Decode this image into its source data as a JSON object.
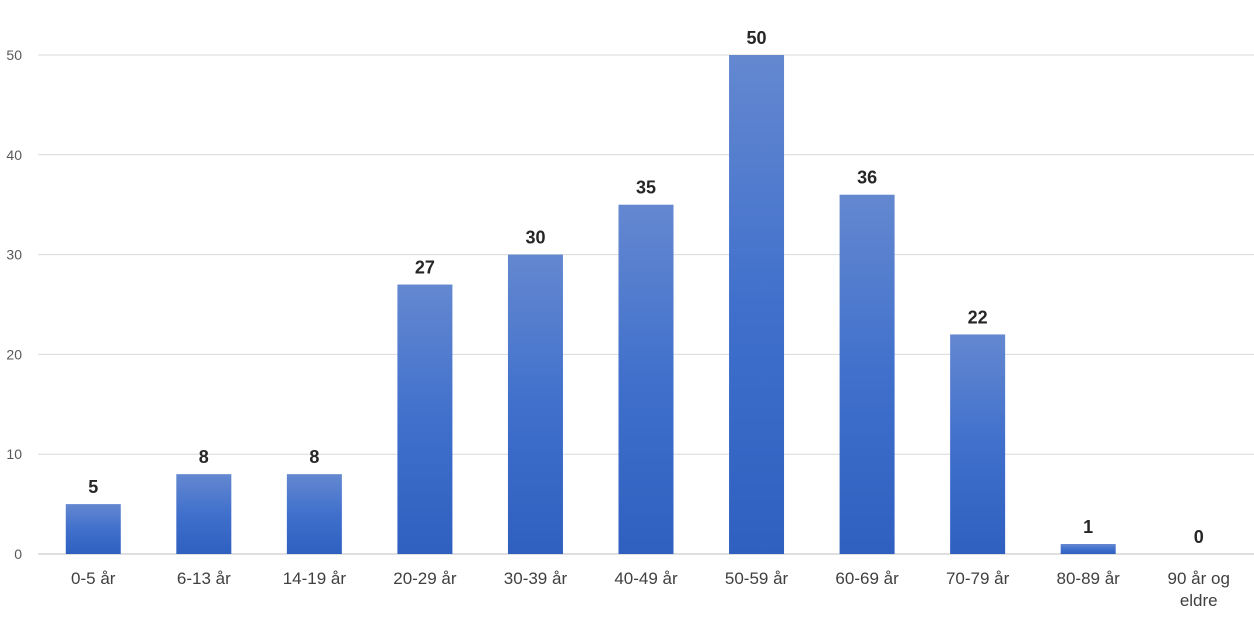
{
  "chart_data": {
    "type": "bar",
    "categories": [
      "0-5 år",
      "6-13 år",
      "14-19 år",
      "20-29 år",
      "30-39 år",
      "40-49 år",
      "50-59 år",
      "60-69 år",
      "70-79 år",
      "80-89 år",
      "90 år og eldre"
    ],
    "values": [
      5,
      8,
      8,
      27,
      30,
      35,
      50,
      36,
      22,
      1,
      0
    ],
    "yticks": [
      0,
      10,
      20,
      30,
      40,
      50
    ],
    "ylim": [
      0,
      50
    ],
    "grid": true,
    "legend": "none",
    "data_labels": true,
    "bar_color_top": "#6488d0",
    "bar_color_bottom": "#2f60c0"
  }
}
